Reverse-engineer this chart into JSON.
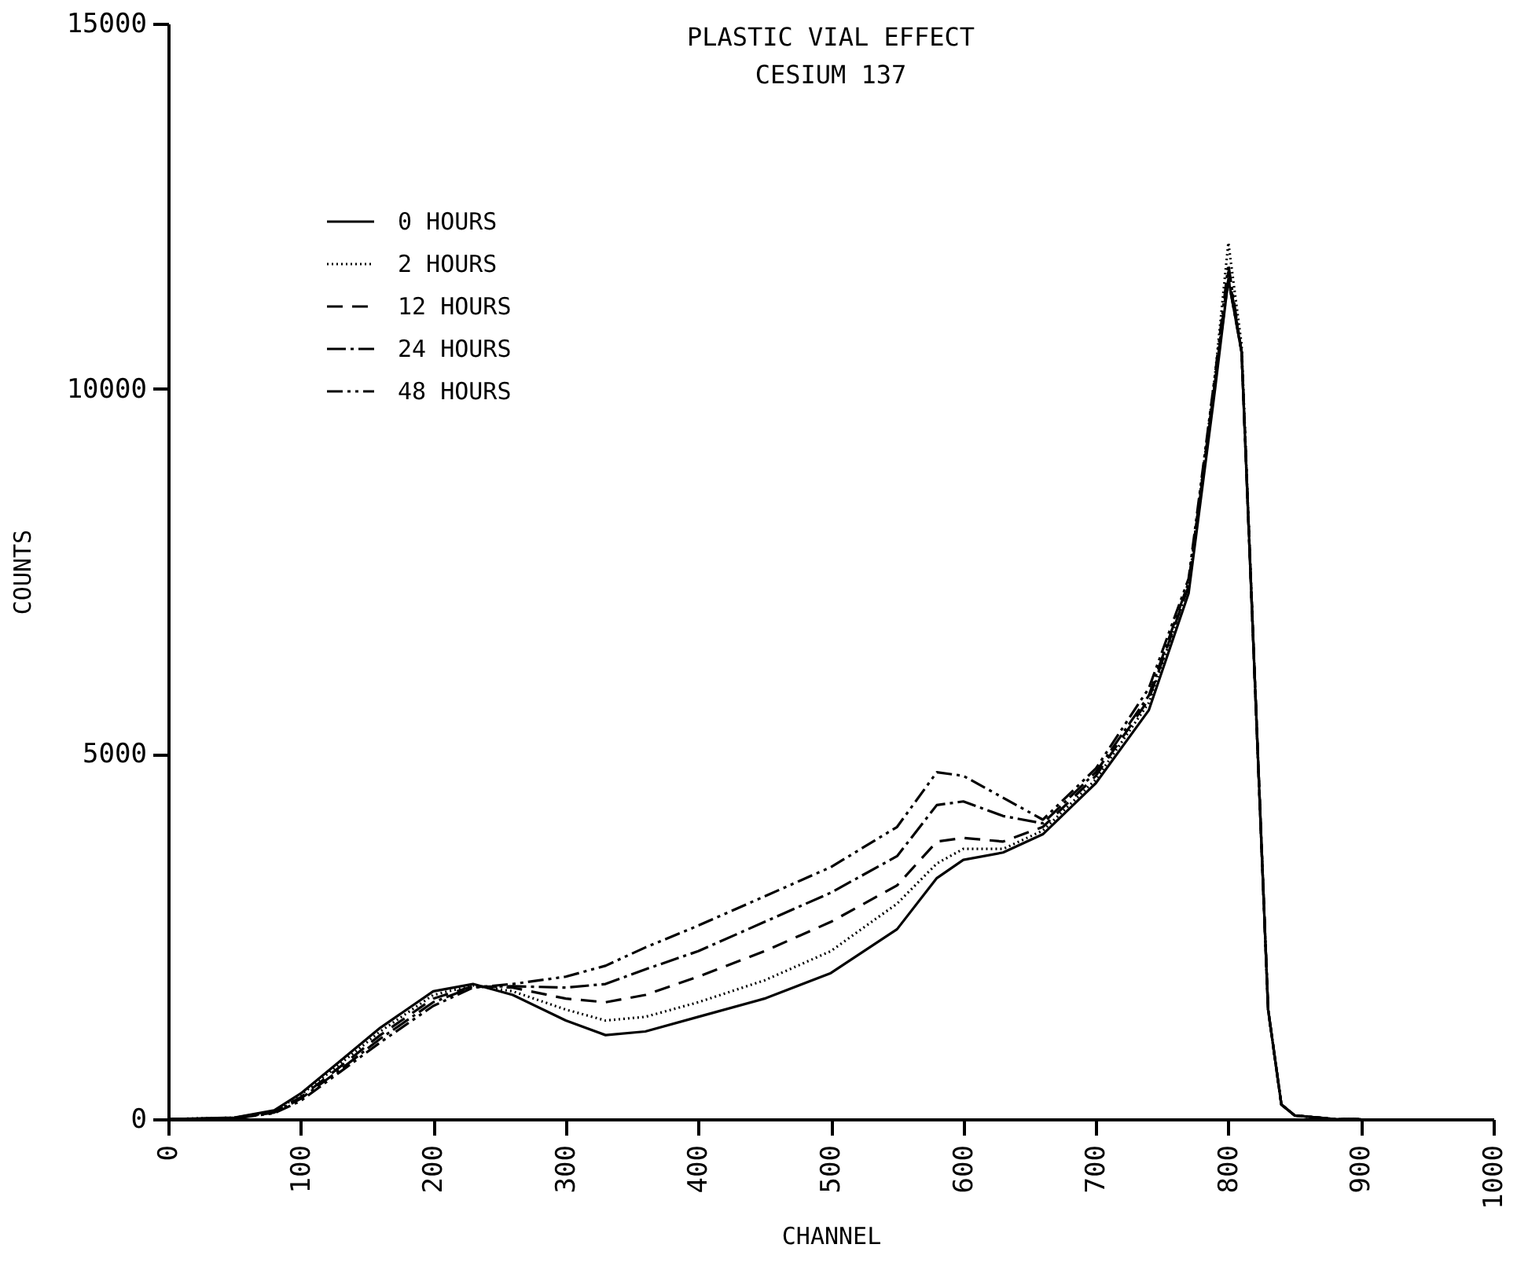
{
  "chart_data": {
    "type": "line",
    "title": "PLASTIC VIAL EFFECT",
    "subtitle": "CESIUM 137",
    "xlabel": "CHANNEL",
    "ylabel": "COUNTS",
    "xlim": [
      0,
      1000
    ],
    "ylim": [
      0,
      15000
    ],
    "xticks": [
      0,
      100,
      200,
      300,
      400,
      500,
      600,
      700,
      800,
      900,
      1000
    ],
    "yticks": [
      0,
      5000,
      10000,
      15000
    ],
    "grid": false,
    "legend": "top left",
    "marker": "none",
    "x": [
      0,
      50,
      80,
      100,
      130,
      160,
      200,
      230,
      260,
      300,
      330,
      360,
      400,
      450,
      500,
      550,
      580,
      600,
      630,
      660,
      700,
      740,
      770,
      790,
      800,
      810,
      820,
      830,
      840,
      850,
      880,
      900
    ],
    "series": [
      {
        "name": "0 HOURS",
        "color": "#000000",
        "line_style": "solid",
        "values": [
          0,
          20,
          120,
          350,
          800,
          1250,
          1750,
          1850,
          1700,
          1350,
          1150,
          1200,
          1400,
          1650,
          2000,
          2600,
          3300,
          3550,
          3650,
          3900,
          4600,
          5600,
          7200,
          10000,
          11500,
          10500,
          6000,
          1500,
          200,
          50,
          0,
          0
        ]
      },
      {
        "name": "2 HOURS",
        "color": "#000000",
        "line_style": "dotted",
        "values": [
          0,
          20,
          110,
          330,
          760,
          1200,
          1700,
          1830,
          1750,
          1500,
          1350,
          1400,
          1600,
          1900,
          2300,
          2950,
          3500,
          3700,
          3700,
          3950,
          4650,
          5700,
          7300,
          10200,
          12000,
          10600,
          6000,
          1500,
          200,
          50,
          0,
          0
        ]
      },
      {
        "name": "12 HOURS",
        "color": "#000000",
        "line_style": "dashed",
        "values": [
          0,
          10,
          100,
          300,
          720,
          1150,
          1650,
          1820,
          1800,
          1650,
          1600,
          1700,
          1950,
          2300,
          2700,
          3200,
          3800,
          3850,
          3800,
          4000,
          4700,
          5750,
          7300,
          10100,
          11600,
          10500,
          6000,
          1500,
          200,
          50,
          0,
          0
        ]
      },
      {
        "name": "24 HOURS",
        "color": "#000000",
        "line_style": "dashdot",
        "values": [
          0,
          10,
          90,
          280,
          680,
          1100,
          1600,
          1810,
          1820,
          1800,
          1850,
          2050,
          2300,
          2700,
          3100,
          3600,
          4300,
          4350,
          4150,
          4050,
          4750,
          5800,
          7350,
          10100,
          11500,
          10500,
          6000,
          1500,
          200,
          50,
          0,
          0
        ]
      },
      {
        "name": "48 HOURS",
        "color": "#000000",
        "line_style": "dashdotdot",
        "values": [
          0,
          10,
          80,
          250,
          650,
          1050,
          1550,
          1800,
          1850,
          1950,
          2100,
          2350,
          2650,
          3050,
          3450,
          4000,
          4750,
          4700,
          4400,
          4100,
          4800,
          5900,
          7400,
          10200,
          11700,
          10500,
          6000,
          1500,
          200,
          50,
          0,
          0
        ]
      }
    ]
  }
}
